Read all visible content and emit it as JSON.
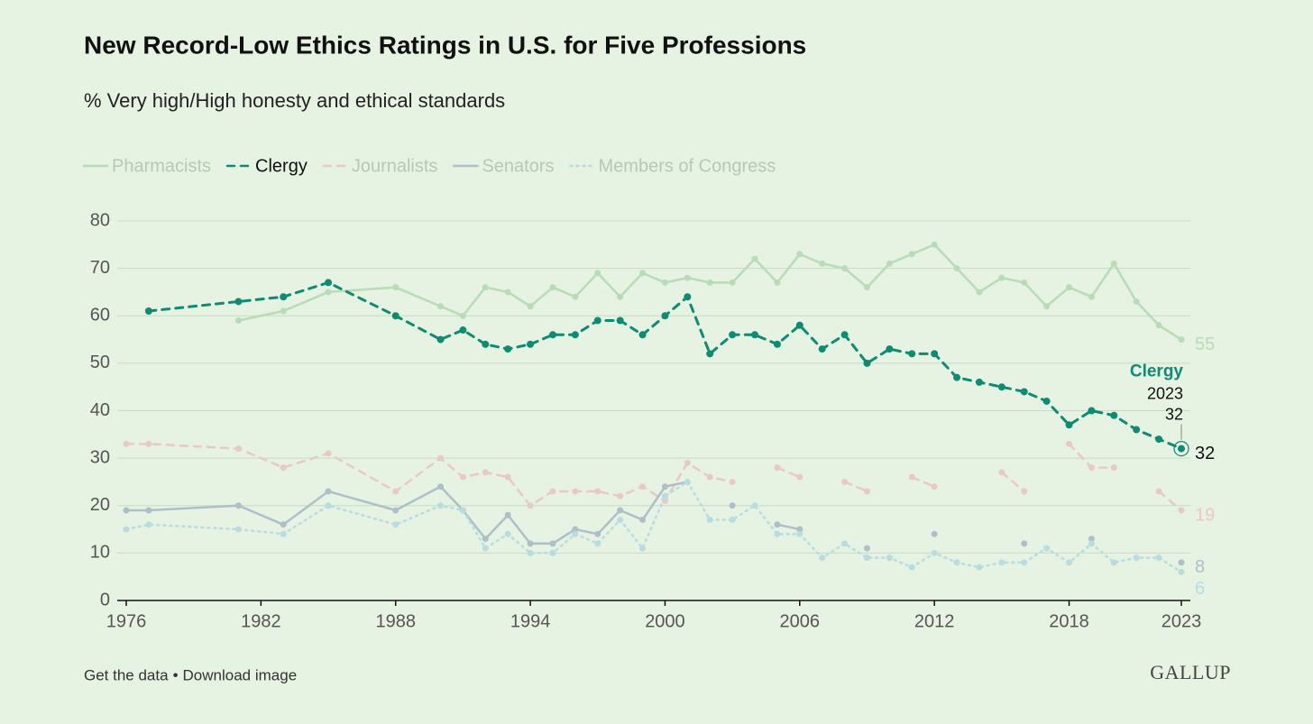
{
  "chart_data": {
    "type": "line",
    "title": "New Record-Low Ethics Ratings in U.S. for Five Professions",
    "subtitle": "% Very high/High honesty and ethical standards",
    "xlim": [
      1976,
      2023
    ],
    "xticks": [
      1976,
      1982,
      1988,
      1994,
      2000,
      2006,
      2012,
      2018,
      2023
    ],
    "ylim": [
      0,
      80
    ],
    "yticks": [
      0,
      10,
      20,
      30,
      40,
      50,
      60,
      70,
      80
    ],
    "grid": true,
    "legend": "top-left",
    "end_labels": true,
    "series": [
      {
        "name": "Pharmacists",
        "color": "#b9dbb8",
        "dash": "solid",
        "highlight": false,
        "x": [
          1981,
          1983,
          1985,
          1988,
          1990,
          1991,
          1992,
          1993,
          1994,
          1995,
          1996,
          1997,
          1998,
          1999,
          2000,
          2001,
          2002,
          2003,
          2004,
          2005,
          2006,
          2007,
          2008,
          2009,
          2010,
          2011,
          2012,
          2013,
          2014,
          2015,
          2016,
          2017,
          2018,
          2019,
          2020,
          2021,
          2022,
          2023
        ],
        "values": [
          59,
          61,
          65,
          66,
          62,
          60,
          66,
          65,
          62,
          66,
          64,
          69,
          64,
          69,
          67,
          68,
          67,
          67,
          72,
          67,
          73,
          71,
          70,
          66,
          71,
          73,
          75,
          70,
          65,
          68,
          67,
          62,
          66,
          64,
          71,
          63,
          58,
          55
        ]
      },
      {
        "name": "Clergy",
        "color": "#0f8a73",
        "dash": "dash",
        "highlight": true,
        "x": [
          1977,
          1981,
          1983,
          1985,
          1988,
          1990,
          1991,
          1992,
          1993,
          1994,
          1995,
          1996,
          1997,
          1998,
          1999,
          2000,
          2001,
          2002,
          2003,
          2004,
          2005,
          2006,
          2007,
          2008,
          2009,
          2010,
          2011,
          2012,
          2013,
          2014,
          2015,
          2016,
          2017,
          2018,
          2019,
          2020,
          2021,
          2022,
          2023
        ],
        "values": [
          61,
          63,
          64,
          67,
          60,
          55,
          57,
          54,
          53,
          54,
          56,
          56,
          59,
          59,
          56,
          60,
          64,
          52,
          56,
          56,
          54,
          58,
          53,
          56,
          50,
          53,
          52,
          52,
          47,
          46,
          45,
          44,
          42,
          37,
          40,
          39,
          36,
          34,
          32
        ]
      },
      {
        "name": "Journalists",
        "color": "#e9c9c3",
        "dash": "dash",
        "highlight": false,
        "x": [
          1976,
          1977,
          1981,
          1983,
          1985,
          1988,
          1990,
          1991,
          1992,
          1993,
          1994,
          1995,
          1996,
          1997,
          1998,
          1999,
          2000,
          2001,
          2002,
          2003,
          2004,
          2005,
          2006,
          2007,
          2008,
          2009,
          2010,
          2011,
          2012,
          2013,
          2015,
          2016,
          2017,
          2018,
          2019,
          2020,
          2021,
          2022,
          2023
        ],
        "values": [
          33,
          33,
          32,
          28,
          31,
          23,
          30,
          26,
          27,
          26,
          20,
          23,
          23,
          23,
          22,
          24,
          21,
          29,
          26,
          25,
          null,
          28,
          26,
          null,
          25,
          23,
          null,
          26,
          24,
          null,
          27,
          23,
          null,
          33,
          28,
          28,
          null,
          23,
          19
        ]
      },
      {
        "name": "Senators",
        "color": "#aebfc9",
        "dash": "solid",
        "highlight": false,
        "x": [
          1976,
          1977,
          1981,
          1983,
          1985,
          1988,
          1990,
          1991,
          1992,
          1993,
          1994,
          1995,
          1996,
          1997,
          1998,
          1999,
          2000,
          2001,
          2002,
          2003,
          2004,
          2005,
          2006,
          2007,
          2009,
          2010,
          2012,
          2013,
          2016,
          2017,
          2019,
          2020,
          2023
        ],
        "values": [
          19,
          19,
          20,
          16,
          23,
          19,
          24,
          19,
          13,
          18,
          12,
          12,
          15,
          14,
          19,
          17,
          24,
          25,
          null,
          20,
          null,
          16,
          15,
          null,
          11,
          null,
          14,
          null,
          12,
          null,
          13,
          null,
          8
        ]
      },
      {
        "name": "Members of Congress",
        "color": "#b8dce0",
        "dash": "dot",
        "highlight": false,
        "x": [
          1976,
          1977,
          1981,
          1983,
          1985,
          1988,
          1990,
          1991,
          1992,
          1993,
          1994,
          1995,
          1996,
          1997,
          1998,
          1999,
          2000,
          2001,
          2002,
          2003,
          2004,
          2005,
          2006,
          2007,
          2008,
          2009,
          2010,
          2011,
          2012,
          2013,
          2014,
          2015,
          2016,
          2017,
          2018,
          2019,
          2020,
          2021,
          2022,
          2023
        ],
        "values": [
          15,
          16,
          15,
          14,
          20,
          16,
          20,
          19,
          11,
          14,
          10,
          10,
          14,
          12,
          17,
          11,
          22,
          25,
          17,
          17,
          20,
          14,
          14,
          9,
          12,
          9,
          9,
          7,
          10,
          8,
          7,
          8,
          8,
          11,
          8,
          12,
          8,
          9,
          9,
          6
        ]
      }
    ]
  },
  "footer": {
    "links": [
      "Get the data",
      "Download image"
    ],
    "separator": "•",
    "logo": "GALLUP"
  }
}
